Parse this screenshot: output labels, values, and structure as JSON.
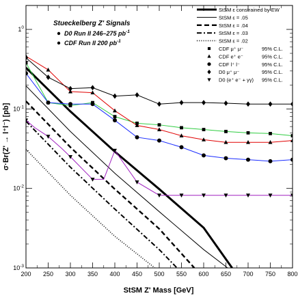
{
  "chart_data": {
    "type": "line",
    "title": "",
    "xlabel": "StSM Z' Mass [GeV]",
    "ylabel": "σ·Br(Z' → l⁺l⁻) [pb]",
    "xlim": [
      200,
      800
    ],
    "ylim": [
      0.001,
      2
    ],
    "yscale": "log",
    "x_ticks": [
      200,
      250,
      300,
      350,
      400,
      450,
      500,
      550,
      600,
      650,
      700,
      750,
      800
    ],
    "y_ticks": [
      {
        "value": 0.001,
        "base": "10",
        "exp": "-3"
      },
      {
        "value": 0.01,
        "base": "10",
        "exp": "-2"
      },
      {
        "value": 0.1,
        "base": "10",
        "exp": "-1"
      },
      {
        "value": 1,
        "base": "1",
        "exp": "0"
      }
    ],
    "annotations": [
      {
        "id": "heading",
        "text": "Stueckelberg Z' Signals"
      },
      {
        "id": "d0",
        "text": "D0 Run II 246–275 pb",
        "sup": "-1"
      },
      {
        "id": "cdf",
        "text": "CDF Run II 200 pb",
        "sup": "-1"
      }
    ],
    "theory_series": [
      {
        "name": "StSM ε  constrained by EW",
        "style": "thick",
        "x": [
          200,
          300,
          400,
          500,
          600,
          664
        ],
        "y": [
          0.33,
          0.093,
          0.029,
          0.0098,
          0.0032,
          0.001
        ]
      },
      {
        "name": "StSM ε = .05",
        "style": "thin",
        "x": [
          200,
          300,
          400,
          500,
          600,
          654
        ],
        "y": [
          0.195,
          0.052,
          0.0155,
          0.0051,
          0.0017,
          0.001
        ]
      },
      {
        "name": "StSM ε = .04",
        "style": "dashed",
        "x": [
          200,
          300,
          400,
          500,
          579
        ],
        "y": [
          0.125,
          0.033,
          0.0098,
          0.0031,
          0.001
        ]
      },
      {
        "name": "StSM ε = .03",
        "style": "dashdot",
        "x": [
          200,
          300,
          400,
          500,
          540
        ],
        "y": [
          0.07,
          0.0185,
          0.0055,
          0.0017,
          0.001
        ]
      },
      {
        "name": "StSM ε = .02",
        "style": "dotted",
        "x": [
          200,
          300,
          400,
          490
        ],
        "y": [
          0.031,
          0.0082,
          0.0025,
          0.001
        ]
      }
    ],
    "limit_series": [
      {
        "name": "CDF μ⁺ μ⁻",
        "cl": "95% C.L.",
        "marker": "square",
        "color": "#2ecc40",
        "x": [
          200,
          250,
          300,
          350,
          400,
          450,
          500,
          550,
          600,
          650,
          700,
          750,
          800
        ],
        "y": [
          0.38,
          0.12,
          0.11,
          0.12,
          0.08,
          0.066,
          0.063,
          0.058,
          0.055,
          0.052,
          0.05,
          0.049,
          0.046
        ]
      },
      {
        "name": "CDF e⁺ e⁻",
        "cl": "95% C.L.",
        "marker": "triangle-up",
        "color": "#e00000",
        "x": [
          200,
          250,
          300,
          350,
          400,
          450,
          500,
          550,
          600,
          650,
          700,
          750,
          800
        ],
        "y": [
          0.46,
          0.31,
          0.165,
          0.16,
          0.095,
          0.062,
          0.055,
          0.046,
          0.041,
          0.038,
          0.038,
          0.038,
          0.04
        ]
      },
      {
        "name": "CDF l⁺ l⁻",
        "cl": "95% C.L.",
        "marker": "circle",
        "color": "#1a2cff",
        "x": [
          200,
          250,
          300,
          350,
          400,
          450,
          500,
          550,
          600,
          650,
          700,
          750,
          800
        ],
        "y": [
          0.28,
          0.12,
          0.115,
          0.115,
          0.072,
          0.044,
          0.04,
          0.033,
          0.026,
          0.024,
          0.023,
          0.022,
          0.023
        ]
      },
      {
        "name": "D0 μ⁺ μ⁻",
        "cl": "95% C.L.",
        "marker": "diamond",
        "color": "#000000",
        "x": [
          200,
          250,
          300,
          350,
          400,
          450,
          500,
          550,
          600,
          650,
          700,
          750,
          800
        ],
        "y": [
          0.44,
          0.25,
          0.18,
          0.185,
          0.145,
          0.15,
          0.115,
          0.12,
          0.12,
          0.118,
          0.115,
          0.115,
          0.115
        ]
      },
      {
        "name": "D0 (e⁺ e⁻ + γγ)",
        "cl": "95% C.L.",
        "marker": "triangle-down",
        "color": "#a020c0",
        "x": [
          200,
          220,
          250,
          280,
          300,
          350,
          375,
          400,
          450,
          500,
          550,
          600,
          650,
          700,
          750,
          800
        ],
        "y": [
          0.072,
          0.058,
          0.045,
          0.032,
          0.025,
          0.013,
          0.013,
          0.03,
          0.012,
          0.0082,
          0.0082,
          0.0082,
          0.0082,
          0.0082,
          0.0082,
          0.0082
        ]
      }
    ],
    "legend": "top-right",
    "grid": false
  }
}
